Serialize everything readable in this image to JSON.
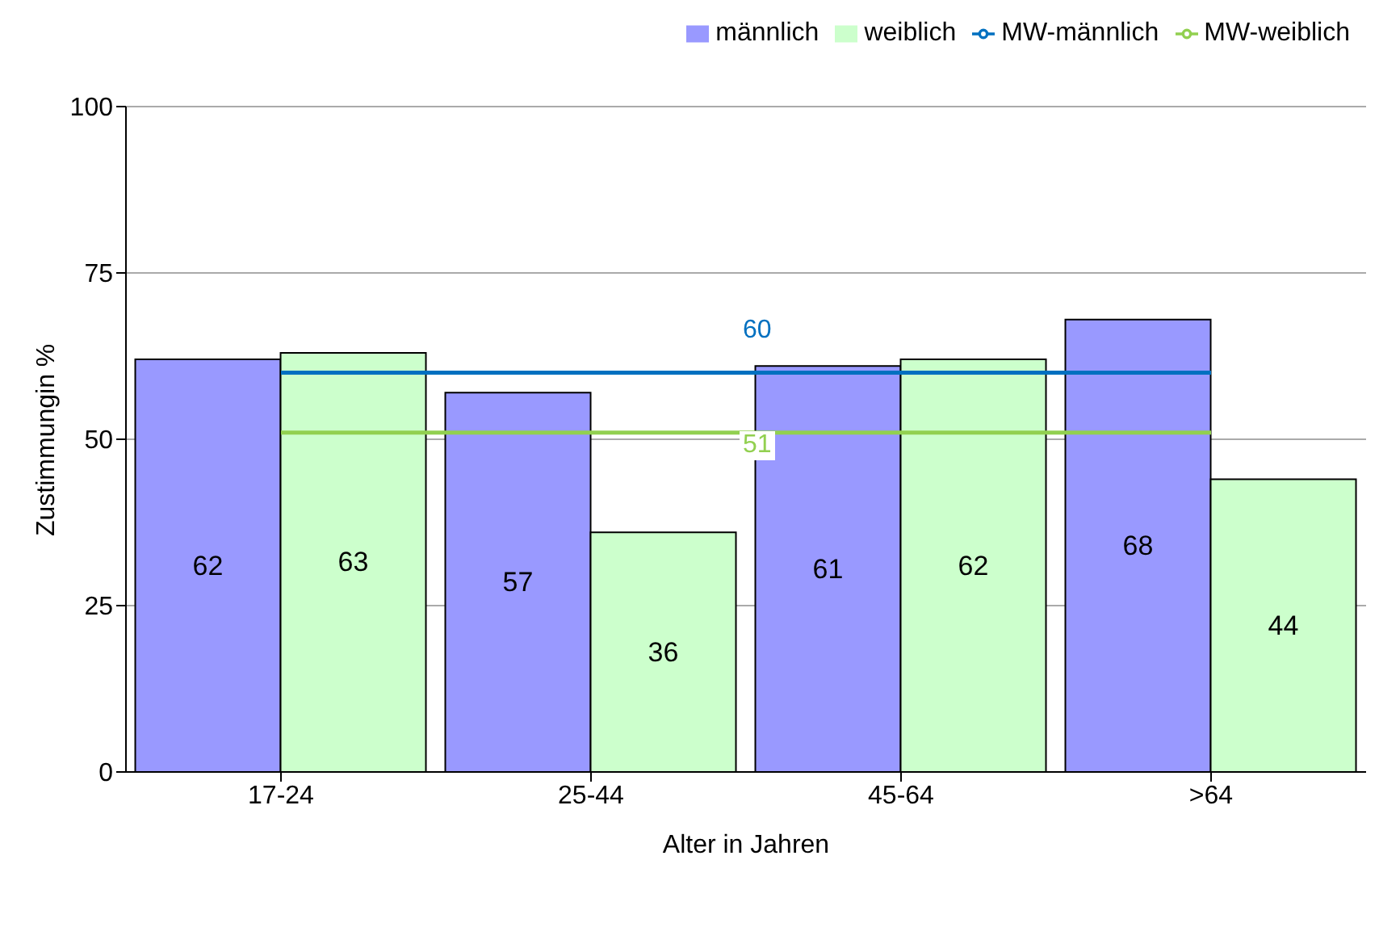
{
  "chart_data": {
    "type": "bar",
    "xlabel": "Alter in Jahren",
    "ylabel": "Zustimmungin %",
    "categories": [
      "17-24",
      "25-44",
      "45-64",
      ">64"
    ],
    "series": [
      {
        "name": "männlich",
        "color": "#9999ff",
        "values": [
          62,
          57,
          61,
          68
        ],
        "value_labels": [
          "62",
          "57",
          "61",
          "68"
        ]
      },
      {
        "name": "weiblich",
        "color": "#ccffcc",
        "values": [
          63,
          36,
          62,
          44
        ],
        "value_labels": [
          "63",
          "36",
          "62",
          "44"
        ]
      },
      {
        "name": "MW-männlich",
        "type": "line",
        "color": "#0070c0",
        "values": [
          60,
          60,
          60,
          60
        ]
      },
      {
        "name": "MW-weiblich",
        "type": "line",
        "color": "#92d050",
        "values": [
          51,
          51,
          51,
          51
        ]
      }
    ],
    "annotations": [
      {
        "text": "60",
        "y": 60
      },
      {
        "text": "51",
        "y": 51
      }
    ],
    "ylim": [
      0,
      100
    ],
    "yticks": [
      0,
      25,
      50,
      75,
      100
    ],
    "grid": "y",
    "legend": "top"
  }
}
